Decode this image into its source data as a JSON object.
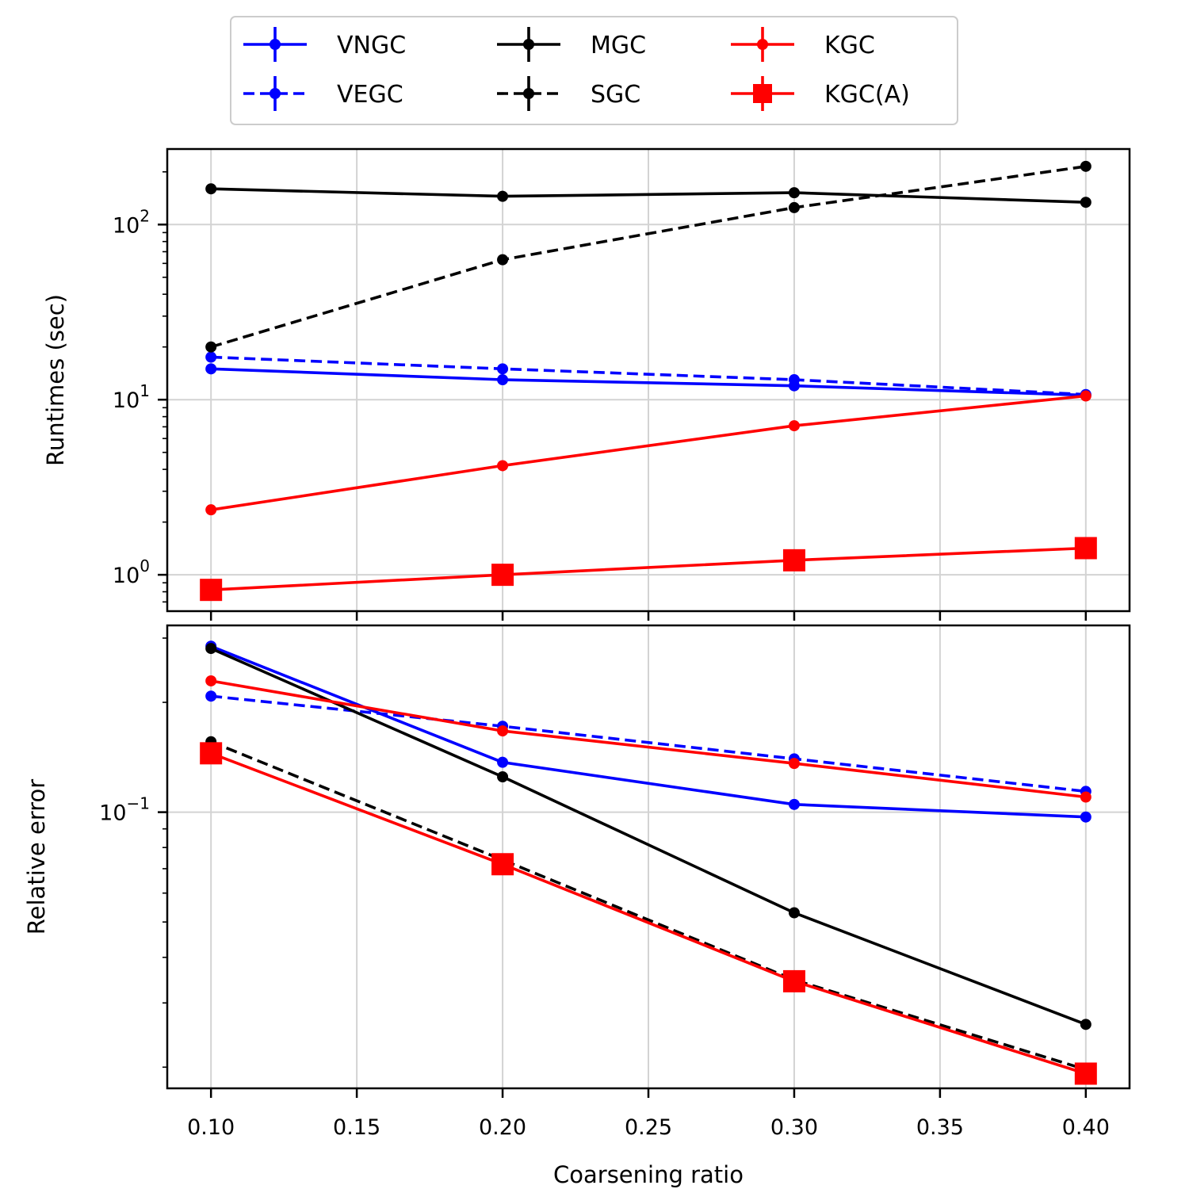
{
  "chart_data": [
    {
      "type": "line",
      "panel": "top",
      "yscale": "log",
      "title": "",
      "xlabel": "",
      "ylabel": "Runtimes (sec)",
      "xlim": [
        0.085,
        0.415
      ],
      "ylim": [
        0.62,
        270
      ],
      "x": [
        0.1,
        0.2,
        0.3,
        0.4
      ],
      "x_ticks": [
        "0.10",
        "0.15",
        "0.20",
        "0.25",
        "0.30",
        "0.35",
        "0.40"
      ],
      "y_ticks": [
        {
          "value": 1,
          "base": "10",
          "exp": "0"
        },
        {
          "value": 10,
          "base": "10",
          "exp": "1"
        },
        {
          "value": 100,
          "base": "10",
          "exp": "2"
        }
      ],
      "grid": true,
      "series": [
        {
          "name": "VNGC",
          "values": [
            15,
            13,
            12,
            10.6
          ]
        },
        {
          "name": "VEGC",
          "values": [
            17.5,
            15,
            13,
            10.7
          ]
        },
        {
          "name": "MGC",
          "values": [
            160,
            145,
            152,
            134
          ]
        },
        {
          "name": "SGC",
          "values": [
            20,
            63,
            125,
            215
          ]
        },
        {
          "name": "KGC",
          "values": [
            2.35,
            4.2,
            7.1,
            10.5
          ]
        },
        {
          "name": "KGC(A)",
          "values": [
            0.82,
            1.0,
            1.21,
            1.42
          ]
        }
      ]
    },
    {
      "type": "line",
      "panel": "bottom",
      "yscale": "log",
      "title": "",
      "xlabel": "Coarsening ratio",
      "ylabel": "Relative error",
      "xlim": [
        0.085,
        0.415
      ],
      "ylim": [
        0.0175,
        0.325
      ],
      "x": [
        0.1,
        0.2,
        0.3,
        0.4
      ],
      "x_ticks": [
        "0.10",
        "0.15",
        "0.20",
        "0.25",
        "0.30",
        "0.35",
        "0.40"
      ],
      "y_ticks": [
        {
          "value": 0.1,
          "base": "10",
          "exp": "−1"
        }
      ],
      "grid": true,
      "series": [
        {
          "name": "VNGC",
          "values": [
            0.285,
            0.137,
            0.105,
            0.097
          ]
        },
        {
          "name": "VEGC",
          "values": [
            0.208,
            0.172,
            0.14,
            0.114
          ]
        },
        {
          "name": "MGC",
          "values": [
            0.281,
            0.125,
            0.053,
            0.0262
          ]
        },
        {
          "name": "SGC",
          "values": [
            0.156,
            0.074,
            0.0347,
            0.0197
          ]
        },
        {
          "name": "KGC",
          "values": [
            0.229,
            0.167,
            0.136,
            0.11
          ]
        },
        {
          "name": "KGC(A)",
          "values": [
            0.145,
            0.072,
            0.0344,
            0.0192
          ]
        }
      ]
    }
  ],
  "legend": {
    "placement": "top-center, above plots",
    "columns": 3,
    "entries": [
      {
        "name": "VNGC",
        "color": "#0000ff",
        "dash": "solid",
        "marker": "circle"
      },
      {
        "name": "VEGC",
        "color": "#0000ff",
        "dash": "dashed",
        "marker": "circle"
      },
      {
        "name": "MGC",
        "color": "#000000",
        "dash": "solid",
        "marker": "circle"
      },
      {
        "name": "SGC",
        "color": "#000000",
        "dash": "dashed",
        "marker": "circle"
      },
      {
        "name": "KGC",
        "color": "#ff0000",
        "dash": "solid",
        "marker": "circle"
      },
      {
        "name": "KGC(A)",
        "color": "#ff0000",
        "dash": "solid",
        "marker": "square"
      }
    ]
  }
}
